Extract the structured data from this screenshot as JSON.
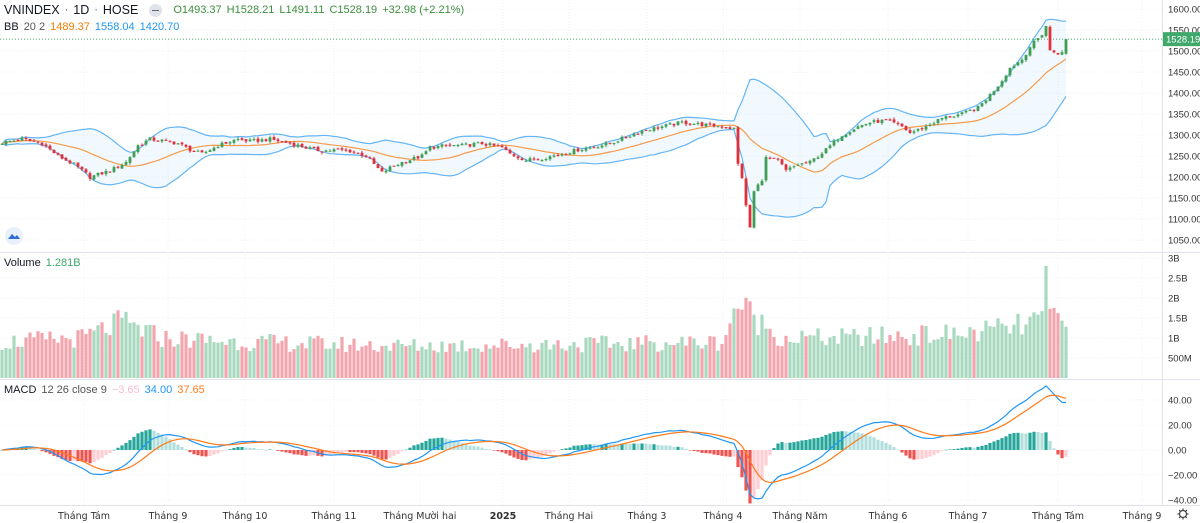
{
  "header": {
    "symbol": "VNINDEX",
    "interval": "1D",
    "exchange": "HOSE",
    "open": "O1493.37",
    "high": "H1528.21",
    "low": "L1491.11",
    "close": "C1528.19",
    "change": "+32.98 (+2.21%)"
  },
  "bb_legend": {
    "name": "BB",
    "params": "20 2",
    "basis": "1489.37",
    "upper": "1558.04",
    "lower": "1420.70"
  },
  "volume_legend": {
    "name": "Volume",
    "value": "1.281B"
  },
  "macd_legend": {
    "name": "MACD",
    "params": "12 26 close 9",
    "hist": "−3.65",
    "macd": "34.00",
    "signal": "37.65"
  },
  "last_price_label": "1528.19",
  "colors": {
    "up": "#3f9e55",
    "down": "#e0303a",
    "vol_up": "#a8d8bd",
    "vol_down": "#f3a5ad",
    "bb_band": "#64b5f6",
    "bb_basis": "#f59b4c",
    "macd": "#2196f3",
    "signal": "#ff7a1a",
    "last_price": "#3fa86a"
  },
  "chart_data": [
    {
      "type": "candlestick",
      "title": "VNINDEX 1D HOSE",
      "bars": 267,
      "close_keyframes": [
        [
          0,
          1282
        ],
        [
          5,
          1290
        ],
        [
          10,
          1280
        ],
        [
          14,
          1250
        ],
        [
          18,
          1230
        ],
        [
          22,
          1200
        ],
        [
          27,
          1215
        ],
        [
          31,
          1235
        ],
        [
          34,
          1275
        ],
        [
          37,
          1290
        ],
        [
          41,
          1285
        ],
        [
          44,
          1280
        ],
        [
          47,
          1265
        ],
        [
          50,
          1255
        ],
        [
          54,
          1275
        ],
        [
          59,
          1290
        ],
        [
          62,
          1285
        ],
        [
          67,
          1290
        ],
        [
          72,
          1280
        ],
        [
          76,
          1270
        ],
        [
          80,
          1262
        ],
        [
          84,
          1265
        ],
        [
          87,
          1262
        ],
        [
          91,
          1250
        ],
        [
          95,
          1210
        ],
        [
          97,
          1222
        ],
        [
          100,
          1235
        ],
        [
          105,
          1250
        ],
        [
          107,
          1270
        ],
        [
          111,
          1275
        ],
        [
          115,
          1275
        ],
        [
          120,
          1280
        ],
        [
          125,
          1270
        ],
        [
          127,
          1255
        ],
        [
          131,
          1240
        ],
        [
          135,
          1245
        ],
        [
          140,
          1255
        ],
        [
          144,
          1265
        ],
        [
          147,
          1270
        ],
        [
          152,
          1280
        ],
        [
          156,
          1295
        ],
        [
          160,
          1310
        ],
        [
          165,
          1320
        ],
        [
          170,
          1330
        ],
        [
          175,
          1325
        ],
        [
          180,
          1320
        ],
        [
          183,
          1315
        ],
        [
          184,
          1230
        ],
        [
          185,
          1200
        ],
        [
          186,
          1130
        ],
        [
          187,
          1080
        ],
        [
          188,
          1165
        ],
        [
          190,
          1195
        ],
        [
          191,
          1245
        ],
        [
          194,
          1240
        ],
        [
          196,
          1215
        ],
        [
          199,
          1230
        ],
        [
          202,
          1235
        ],
        [
          206,
          1265
        ],
        [
          210,
          1300
        ],
        [
          214,
          1320
        ],
        [
          217,
          1330
        ],
        [
          221,
          1335
        ],
        [
          225,
          1320
        ],
        [
          227,
          1305
        ],
        [
          231,
          1320
        ],
        [
          235,
          1340
        ],
        [
          240,
          1350
        ],
        [
          244,
          1365
        ],
        [
          247,
          1395
        ],
        [
          250,
          1430
        ],
        [
          252,
          1460
        ],
        [
          255,
          1480
        ],
        [
          257,
          1510
        ],
        [
          260,
          1540
        ],
        [
          261,
          1560
        ],
        [
          262,
          1500
        ],
        [
          264,
          1495
        ],
        [
          265,
          1495
        ],
        [
          266,
          1528.19
        ]
      ],
      "last_bar": {
        "open": 1493.37,
        "high": 1528.21,
        "low": 1491.11,
        "close": 1528.19
      },
      "y_ticks": [
        "1600.00",
        "1550.00",
        "1500.00",
        "1450.00",
        "1400.00",
        "1350.00",
        "1300.00",
        "1250.00",
        "1200.00",
        "1150.00",
        "1100.00",
        "1050.00"
      ],
      "ylim": [
        1030,
        1620
      ],
      "indicator": "Bollinger Bands (20, 2)"
    },
    {
      "type": "bar",
      "title": "Volume",
      "unit": "B",
      "volume_keyframes": [
        [
          0,
          0.9
        ],
        [
          20,
          1.0
        ],
        [
          30,
          1.4
        ],
        [
          40,
          1.0
        ],
        [
          60,
          0.9
        ],
        [
          100,
          0.8
        ],
        [
          150,
          0.85
        ],
        [
          180,
          0.9
        ],
        [
          184,
          1.9
        ],
        [
          188,
          1.5
        ],
        [
          195,
          1.0
        ],
        [
          210,
          1.0
        ],
        [
          240,
          1.1
        ],
        [
          255,
          1.3
        ],
        [
          260,
          1.5
        ],
        [
          261,
          2.8
        ],
        [
          262,
          1.7
        ],
        [
          266,
          1.281
        ]
      ],
      "y_ticks": [
        "3B",
        "2.5B",
        "2B",
        "1.5B",
        "1B",
        "500M"
      ],
      "ylim": [
        0,
        3
      ]
    },
    {
      "type": "line",
      "title": "MACD 12 26 close 9",
      "series": [
        "MACD",
        "Signal",
        "Histogram"
      ],
      "y_ticks": [
        "40.00",
        "20.00",
        "0.00",
        "−20.00",
        "−40.00"
      ],
      "ylim": [
        -40,
        40
      ]
    }
  ],
  "time_axis": [
    "Tháng Tám",
    "Tháng 9",
    "Tháng 10",
    "Tháng 11",
    "Tháng Mười hai",
    "2025",
    "Tháng Hai",
    "Tháng 3",
    "Tháng 4",
    "Tháng Năm",
    "Tháng 6",
    "Tháng 7",
    "Tháng Tám",
    "Tháng 9"
  ]
}
